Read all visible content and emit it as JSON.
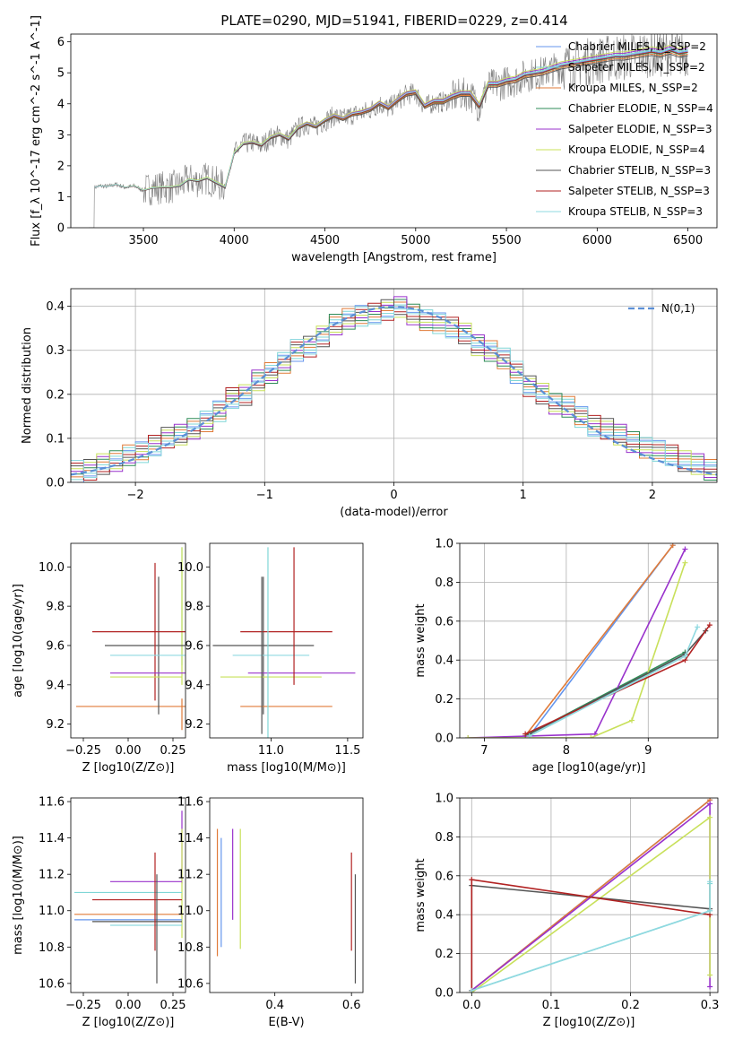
{
  "figure_title": "PLATE=0290, MJD=51941, FIBERID=0229, z=0.414",
  "models": [
    {
      "name": "Chabrier MILES",
      "nssp": "2",
      "color": "#6495ed"
    },
    {
      "name": "Salpeter MILES",
      "nssp": "2",
      "color": "#7fd6d6"
    },
    {
      "name": "Kroupa MILES",
      "nssp": "2",
      "color": "#e07b39"
    },
    {
      "name": "Chabrier ELODIE",
      "nssp": "4",
      "color": "#2e8b57"
    },
    {
      "name": "Salpeter ELODIE",
      "nssp": "3",
      "color": "#9932cc"
    },
    {
      "name": "Kroupa ELODIE",
      "nssp": "4",
      "color": "#c8e05a"
    },
    {
      "name": "Chabrier STELIB",
      "nssp": "3",
      "color": "#555555"
    },
    {
      "name": "Salpeter STELIB",
      "nssp": "3",
      "color": "#b22222"
    },
    {
      "name": "Kroupa STELIB",
      "nssp": "3",
      "color": "#8fd9e0"
    }
  ],
  "chart_data": [
    {
      "id": "spectrum",
      "type": "line",
      "xlabel": "wavelength [Angstrom, rest frame]",
      "ylabel": "Flux [f_λ 10^-17 erg cm^-2 s^-1 A^-1]",
      "xlim": [
        3100,
        6660
      ],
      "ylim": [
        0,
        6.25
      ],
      "xticks": [
        3500,
        4000,
        4500,
        5000,
        5500,
        6000,
        6500
      ],
      "yticks": [
        0,
        1,
        2,
        3,
        4,
        5,
        6
      ],
      "data_color": "#808080",
      "continuum": {
        "x": [
          3230,
          3260,
          3300,
          3350,
          3400,
          3450,
          3500,
          3550,
          3600,
          3650,
          3700,
          3750,
          3800,
          3850,
          3900,
          3950,
          4000,
          4050,
          4100,
          4150,
          4200,
          4250,
          4300,
          4350,
          4400,
          4450,
          4500,
          4550,
          4600,
          4650,
          4700,
          4750,
          4800,
          4850,
          4900,
          4950,
          5000,
          5050,
          5100,
          5150,
          5200,
          5250,
          5300,
          5350,
          5400,
          5450,
          5500,
          5550,
          5600,
          5650,
          5700,
          5750,
          5800,
          5850,
          5900,
          5950,
          6000,
          6050,
          6100,
          6150,
          6200,
          6250,
          6300,
          6350,
          6400,
          6450,
          6500
        ],
        "y": [
          1.3,
          1.35,
          1.33,
          1.4,
          1.3,
          1.35,
          1.2,
          1.28,
          1.3,
          1.3,
          1.35,
          1.55,
          1.5,
          1.6,
          1.45,
          1.3,
          2.4,
          2.7,
          2.75,
          2.65,
          2.9,
          3.0,
          2.85,
          3.2,
          3.35,
          3.25,
          3.45,
          3.6,
          3.5,
          3.65,
          3.7,
          3.8,
          4.0,
          3.85,
          4.1,
          4.3,
          4.35,
          3.9,
          4.05,
          4.05,
          4.2,
          4.3,
          4.3,
          3.9,
          4.6,
          4.6,
          4.7,
          4.75,
          4.9,
          4.95,
          5.0,
          5.1,
          5.2,
          5.25,
          5.3,
          5.35,
          5.4,
          5.45,
          5.5,
          5.5,
          5.55,
          5.6,
          5.65,
          5.6,
          5.7,
          5.6,
          5.65
        ]
      },
      "model_offsets": [
        0.05,
        0.1,
        -0.05,
        0.0,
        0.15,
        0.2,
        -0.1,
        0.02,
        0.08
      ],
      "legend_labels": [
        "Chabrier MILES, N_SSP=2",
        "Salpeter MILES, N_SSP=2",
        "Kroupa MILES, N_SSP=2",
        "Chabrier ELODIE, N_SSP=4",
        "Salpeter ELODIE, N_SSP=3",
        "Kroupa ELODIE, N_SSP=4",
        "Chabrier STELIB, N_SSP=3",
        "Salpeter STELIB, N_SSP=3",
        "Kroupa STELIB, N_SSP=3"
      ]
    },
    {
      "id": "residuals",
      "type": "line",
      "xlabel": "(data-model)/error",
      "ylabel": "Normed distribution",
      "xlim": [
        -2.5,
        2.5
      ],
      "ylim": [
        0,
        0.44
      ],
      "xticks": [
        -2,
        -1,
        0,
        1,
        2
      ],
      "yticks": [
        0.0,
        0.1,
        0.2,
        0.3,
        0.4
      ],
      "grid": true,
      "legend": "N(0,1)",
      "bin_edges": [
        -2.5,
        -2.4,
        -2.3,
        -2.2,
        -2.1,
        -2.0,
        -1.9,
        -1.8,
        -1.7,
        -1.6,
        -1.5,
        -1.4,
        -1.3,
        -1.2,
        -1.1,
        -1.0,
        -0.9,
        -0.8,
        -0.7,
        -0.6,
        -0.5,
        -0.4,
        -0.3,
        -0.2,
        -0.1,
        0.0,
        0.1,
        0.2,
        0.3,
        0.4,
        0.5,
        0.6,
        0.7,
        0.8,
        0.9,
        1.0,
        1.1,
        1.2,
        1.3,
        1.4,
        1.5,
        1.6,
        1.7,
        1.8,
        1.9,
        2.0,
        2.1,
        2.2,
        2.3,
        2.4,
        2.5
      ],
      "hist_base": [
        0.025,
        0.03,
        0.04,
        0.05,
        0.06,
        0.07,
        0.085,
        0.1,
        0.11,
        0.12,
        0.14,
        0.16,
        0.19,
        0.2,
        0.23,
        0.25,
        0.27,
        0.3,
        0.31,
        0.33,
        0.36,
        0.37,
        0.38,
        0.385,
        0.39,
        0.4,
        0.38,
        0.37,
        0.36,
        0.35,
        0.34,
        0.31,
        0.3,
        0.28,
        0.25,
        0.22,
        0.2,
        0.18,
        0.17,
        0.15,
        0.13,
        0.12,
        0.11,
        0.09,
        0.08,
        0.07,
        0.06,
        0.05,
        0.04,
        0.03
      ]
    },
    {
      "id": "age_vs_Z",
      "type": "scatter",
      "xlabel": "Z [log10(Z/Z⊙)]",
      "ylabel": "age [log10(age/yr)]",
      "xlim": [
        -0.32,
        0.32
      ],
      "ylim": [
        9.13,
        10.12
      ],
      "xticks": [
        -0.25,
        0.0,
        0.25
      ],
      "yticks": [
        9.2,
        9.4,
        9.6,
        9.8,
        10.0
      ],
      "points": [
        {
          "x": 0.3,
          "xerr": 0.0,
          "y": 9.8,
          "yerr": 0.3,
          "model": 1
        },
        {
          "x": 0.3,
          "xerr": 0.0,
          "y": 9.75,
          "yerr": 0.35,
          "model": 5
        },
        {
          "x": 0.16,
          "xerr": 0.45,
          "y": 9.29,
          "yerr": 0.0,
          "model": 2
        },
        {
          "x": 0.17,
          "xerr": 0.3,
          "y": 9.6,
          "yerr": 0.35,
          "model": 6
        },
        {
          "x": 0.15,
          "xerr": 0.35,
          "y": 9.67,
          "yerr": 0.35,
          "model": 7
        },
        {
          "x": 0.15,
          "xerr": 0.25,
          "y": 9.55,
          "yerr": 0.0,
          "model": 8
        },
        {
          "x": 0.15,
          "xerr": 0.25,
          "y": 9.46,
          "yerr": 0.0,
          "model": 4
        },
        {
          "x": 0.1,
          "xerr": 0.2,
          "y": 9.44,
          "yerr": 0.0,
          "model": 5
        },
        {
          "x": 0.3,
          "xerr": 0.0,
          "y": 9.25,
          "yerr": 0.08,
          "model": 2
        }
      ]
    },
    {
      "id": "age_vs_mass",
      "type": "scatter",
      "xlabel": "mass [log10(M/M⊙)]",
      "ylabel": "",
      "xlim": [
        10.6,
        11.6
      ],
      "ylim": [
        9.13,
        10.12
      ],
      "xticks": [
        11.0,
        11.5
      ],
      "yticks": [
        9.2,
        9.4,
        9.6,
        9.8,
        10.0
      ],
      "points": [
        {
          "x": 10.95,
          "xerr": 0.33,
          "y": 9.6,
          "yerr": 0.35,
          "model": 6
        },
        {
          "x": 11.0,
          "xerr": 0.33,
          "y": 9.44,
          "yerr": 0.0,
          "model": 5
        },
        {
          "x": 11.1,
          "xerr": 0.3,
          "y": 9.67,
          "yerr": 0.0,
          "model": 7
        },
        {
          "x": 11.0,
          "xerr": 0.25,
          "y": 9.55,
          "yerr": 0.0,
          "model": 8
        },
        {
          "x": 11.2,
          "xerr": 0.35,
          "y": 9.46,
          "yerr": 0.0,
          "model": 4
        },
        {
          "x": 11.1,
          "xerr": 0.3,
          "y": 9.29,
          "yerr": 0.0,
          "model": 2
        },
        {
          "x": 11.15,
          "xerr": 0.0,
          "y": 9.75,
          "yerr": 0.35,
          "model": 7
        },
        {
          "x": 10.98,
          "xerr": 0.0,
          "y": 9.6,
          "yerr": 0.5,
          "model": 1
        },
        {
          "x": 10.94,
          "xerr": 0.0,
          "y": 9.55,
          "yerr": 0.4,
          "model": 6
        }
      ]
    },
    {
      "id": "massweight_vs_age",
      "type": "line",
      "xlabel": "age [log10(age/yr)]",
      "ylabel": "mass weight",
      "xlim": [
        6.7,
        9.85
      ],
      "ylim": [
        0,
        1.0
      ],
      "xticks": [
        7,
        8,
        9
      ],
      "yticks": [
        0.0,
        0.2,
        0.4,
        0.6,
        0.8,
        1.0
      ],
      "grid": true,
      "series": [
        {
          "model": 0,
          "x": [
            7.55,
            9.3
          ],
          "y": [
            0.01,
            0.99
          ]
        },
        {
          "model": 1,
          "x": [
            7.55,
            9.45
          ],
          "y": [
            0.01,
            0.43
          ]
        },
        {
          "model": 2,
          "x": [
            7.5,
            9.3
          ],
          "y": [
            0.01,
            0.99
          ]
        },
        {
          "model": 3,
          "x": [
            7.5,
            9.45
          ],
          "y": [
            0.01,
            0.44
          ]
        },
        {
          "model": 4,
          "x": [
            6.8,
            8.35,
            9.45
          ],
          "y": [
            0.0,
            0.02,
            0.97
          ]
        },
        {
          "model": 5,
          "x": [
            6.8,
            8.3,
            8.8,
            9.45
          ],
          "y": [
            0.0,
            0.0,
            0.09,
            0.9
          ]
        },
        {
          "model": 6,
          "x": [
            7.55,
            9.45,
            9.7
          ],
          "y": [
            0.02,
            0.43,
            0.55
          ]
        },
        {
          "model": 7,
          "x": [
            7.5,
            9.45,
            9.75
          ],
          "y": [
            0.02,
            0.4,
            0.58
          ]
        },
        {
          "model": 8,
          "x": [
            7.55,
            9.45,
            9.6
          ],
          "y": [
            0.01,
            0.42,
            0.57
          ]
        }
      ]
    },
    {
      "id": "mass_vs_Z",
      "type": "scatter",
      "xlabel": "Z [log10(Z/Z⊙)]",
      "ylabel": "mass [log10(M/M⊙)]",
      "xlim": [
        -0.32,
        0.32
      ],
      "ylim": [
        10.55,
        11.62
      ],
      "xticks": [
        -0.25,
        0.0,
        0.25
      ],
      "yticks": [
        10.6,
        10.8,
        11.0,
        11.2,
        11.4,
        11.6
      ],
      "points": [
        {
          "x": 0.3,
          "xerr": 0.0,
          "y": 11.35,
          "yerr": 0.2,
          "model": 4
        },
        {
          "x": 0.3,
          "xerr": 0.0,
          "y": 11.15,
          "yerr": 0.3,
          "model": 5
        },
        {
          "x": 0.1,
          "xerr": 0.2,
          "y": 11.16,
          "yerr": 0.0,
          "model": 4
        },
        {
          "x": 0.0,
          "xerr": 0.3,
          "y": 11.1,
          "yerr": 0.0,
          "model": 1
        },
        {
          "x": 0.05,
          "xerr": 0.25,
          "y": 11.06,
          "yerr": 0.0,
          "model": 7
        },
        {
          "x": 0.0,
          "xerr": 0.3,
          "y": 10.98,
          "yerr": 0.0,
          "model": 2
        },
        {
          "x": 0.0,
          "xerr": 0.3,
          "y": 10.95,
          "yerr": 0.0,
          "model": 0
        },
        {
          "x": 0.05,
          "xerr": 0.25,
          "y": 10.94,
          "yerr": 0.0,
          "model": 6
        },
        {
          "x": 0.1,
          "xerr": 0.2,
          "y": 10.92,
          "yerr": 0.0,
          "model": 8
        },
        {
          "x": 0.15,
          "xerr": 0.0,
          "y": 11.05,
          "yerr": 0.27,
          "model": 7
        },
        {
          "x": 0.16,
          "xerr": 0.0,
          "y": 10.9,
          "yerr": 0.3,
          "model": 6
        }
      ]
    },
    {
      "id": "mass_vs_EBV",
      "type": "scatter",
      "xlabel": "E(B-V)",
      "ylabel": "",
      "xlim": [
        0.23,
        0.63
      ],
      "ylim": [
        10.55,
        11.62
      ],
      "xticks": [
        0.4,
        0.6
      ],
      "yticks": [
        10.6,
        10.8,
        11.0,
        11.2,
        11.4,
        11.6
      ],
      "points": [
        {
          "x": 0.25,
          "xerr": 0.0,
          "y": 11.1,
          "yerr": 0.35,
          "model": 2
        },
        {
          "x": 0.26,
          "xerr": 0.0,
          "y": 11.1,
          "yerr": 0.3,
          "model": 0
        },
        {
          "x": 0.29,
          "xerr": 0.0,
          "y": 11.2,
          "yerr": 0.25,
          "model": 4
        },
        {
          "x": 0.31,
          "xerr": 0.0,
          "y": 11.12,
          "yerr": 0.33,
          "model": 5
        },
        {
          "x": 0.6,
          "xerr": 0.0,
          "y": 11.05,
          "yerr": 0.27,
          "model": 7
        },
        {
          "x": 0.61,
          "xerr": 0.0,
          "y": 10.9,
          "yerr": 0.3,
          "model": 6
        }
      ]
    },
    {
      "id": "massweight_vs_Z",
      "type": "line",
      "xlabel": "Z [log10(Z/Z⊙)]",
      "ylabel": "mass weight",
      "xlim": [
        -0.015,
        0.31
      ],
      "ylim": [
        0,
        1.0
      ],
      "xticks": [
        0.0,
        0.1,
        0.2,
        0.3
      ],
      "yticks": [
        0.0,
        0.2,
        0.4,
        0.6,
        0.8,
        1.0
      ],
      "grid": true,
      "series": [
        {
          "model": 0,
          "x": [
            0.0,
            0.3
          ],
          "y": [
            0.01,
            0.99
          ]
        },
        {
          "model": 1,
          "x": [
            0.0,
            0.3,
            0.3
          ],
          "y": [
            0.01,
            0.42,
            0.56
          ]
        },
        {
          "model": 2,
          "x": [
            0.0,
            0.3
          ],
          "y": [
            0.01,
            0.99
          ]
        },
        {
          "model": 4,
          "x": [
            0.0,
            0.3,
            0.3
          ],
          "y": [
            0.01,
            0.97,
            0.03
          ]
        },
        {
          "model": 5,
          "x": [
            0.0,
            0.3,
            0.3
          ],
          "y": [
            0.0,
            0.9,
            0.09
          ]
        },
        {
          "model": 6,
          "x": [
            0.0,
            0.0,
            0.3
          ],
          "y": [
            0.01,
            0.55,
            0.43
          ]
        },
        {
          "model": 7,
          "x": [
            0.0,
            0.0,
            0.3
          ],
          "y": [
            0.01,
            0.58,
            0.4
          ]
        },
        {
          "model": 8,
          "x": [
            0.0,
            0.3,
            0.3
          ],
          "y": [
            0.01,
            0.42,
            0.57
          ]
        }
      ]
    }
  ]
}
